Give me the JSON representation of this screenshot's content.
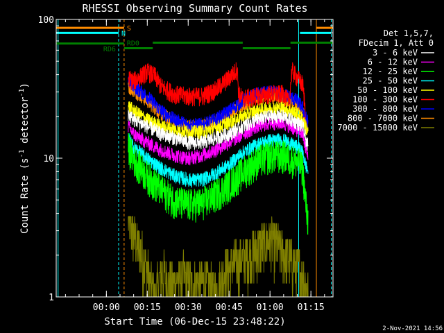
{
  "chart_data": {
    "type": "line",
    "title": "RHESSI Observing Summary Count Rates",
    "xlabel": "Start Time (06-Dec-15 23:48:22)",
    "ylabel_main": "Count Rate (s",
    "ylabel_sup": "-1",
    "ylabel_tail": " detector",
    "ylabel_end": ")",
    "yscale": "log",
    "ylim": [
      1,
      100
    ],
    "xlim_minutes": [
      -18.4,
      83.1
    ],
    "y_ticks": [
      {
        "v": 1,
        "label": "1"
      },
      {
        "v": 10,
        "label": "10"
      },
      {
        "v": 100,
        "label": "100"
      }
    ],
    "x_ticks": [
      {
        "v": 0,
        "label": "00:00"
      },
      {
        "v": 15,
        "label": "00:15"
      },
      {
        "v": 30,
        "label": "00:30"
      },
      {
        "v": 45,
        "label": "00:45"
      },
      {
        "v": 60,
        "label": "01:00"
      },
      {
        "v": 75,
        "label": "01:15"
      }
    ],
    "legend_header": [
      "Det 1,5,7,",
      "FDecim 1, Att 0"
    ],
    "series": [
      {
        "name": "3 - 6 keV",
        "color": "#ffffff",
        "points": [
          [
            8,
            21
          ],
          [
            10,
            19
          ],
          [
            15,
            17
          ],
          [
            20,
            15
          ],
          [
            25,
            14
          ],
          [
            30,
            13
          ],
          [
            35,
            13
          ],
          [
            40,
            14
          ],
          [
            45,
            15
          ],
          [
            50,
            17
          ],
          [
            55,
            19
          ],
          [
            60,
            20
          ],
          [
            65,
            20
          ],
          [
            70,
            18
          ],
          [
            72,
            17
          ],
          [
            73,
            14
          ],
          [
            74,
            12
          ]
        ]
      },
      {
        "name": "6 - 12 keV",
        "color": "#ff00ff",
        "points": [
          [
            8,
            17
          ],
          [
            10,
            15
          ],
          [
            15,
            13
          ],
          [
            20,
            11.5
          ],
          [
            25,
            10.5
          ],
          [
            30,
            10
          ],
          [
            35,
            10.5
          ],
          [
            40,
            11.5
          ],
          [
            45,
            13
          ],
          [
            50,
            15
          ],
          [
            55,
            17
          ],
          [
            60,
            18
          ],
          [
            65,
            18
          ],
          [
            70,
            16
          ],
          [
            72,
            15
          ],
          [
            73,
            12
          ],
          [
            74,
            10
          ]
        ]
      },
      {
        "name": "12 - 25 keV",
        "color": "#00ff00",
        "points": [
          [
            8,
            12
          ],
          [
            10,
            10
          ],
          [
            15,
            7.5
          ],
          [
            20,
            6
          ],
          [
            25,
            5
          ],
          [
            30,
            4.7
          ],
          [
            35,
            4.8
          ],
          [
            40,
            5.5
          ],
          [
            45,
            6.5
          ],
          [
            50,
            8
          ],
          [
            55,
            9.5
          ],
          [
            60,
            10.5
          ],
          [
            65,
            10.5
          ],
          [
            70,
            9.5
          ],
          [
            72,
            8.5
          ],
          [
            73,
            5
          ],
          [
            74,
            3.5
          ]
        ]
      },
      {
        "name": "25 - 50 keV",
        "color": "#00ffff",
        "points": [
          [
            8,
            14
          ],
          [
            10,
            12
          ],
          [
            15,
            10
          ],
          [
            20,
            8.5
          ],
          [
            25,
            7.5
          ],
          [
            30,
            7
          ],
          [
            35,
            7
          ],
          [
            40,
            7.8
          ],
          [
            45,
            9
          ],
          [
            50,
            11
          ],
          [
            55,
            12.5
          ],
          [
            60,
            13.5
          ],
          [
            65,
            13.5
          ],
          [
            70,
            12
          ],
          [
            72,
            11
          ],
          [
            73,
            9
          ],
          [
            74,
            8
          ]
        ]
      },
      {
        "name": "50 - 100 keV",
        "color": "#ffff00",
        "points": [
          [
            8,
            24
          ],
          [
            10,
            22
          ],
          [
            15,
            19
          ],
          [
            20,
            17
          ],
          [
            25,
            16
          ],
          [
            30,
            15.5
          ],
          [
            35,
            15.5
          ],
          [
            40,
            16.5
          ],
          [
            45,
            18
          ],
          [
            50,
            20
          ],
          [
            55,
            22
          ],
          [
            60,
            23
          ],
          [
            65,
            23
          ],
          [
            70,
            21
          ],
          [
            72,
            19
          ],
          [
            73,
            17
          ],
          [
            74,
            15
          ]
        ]
      },
      {
        "name": "100 - 300 keV",
        "color": "#ff0000",
        "points": [
          [
            8,
            38
          ],
          [
            10,
            36
          ],
          [
            15,
            42
          ],
          [
            18,
            39
          ],
          [
            20,
            33
          ],
          [
            25,
            29
          ],
          [
            30,
            28
          ],
          [
            35,
            28
          ],
          [
            40,
            31
          ],
          [
            45,
            38
          ],
          [
            48,
            44
          ],
          [
            48.5,
            29
          ],
          [
            50,
            27
          ],
          [
            55,
            28
          ],
          [
            60,
            29
          ],
          [
            65,
            29
          ],
          [
            67,
            25
          ],
          [
            68,
            43
          ],
          [
            70,
            38
          ],
          [
            72,
            34
          ],
          [
            73,
            22
          ]
        ]
      },
      {
        "name": "300 - 800 keV",
        "color": "#0000ff",
        "points": [
          [
            8,
            36
          ],
          [
            10,
            33
          ],
          [
            15,
            28
          ],
          [
            20,
            22
          ],
          [
            25,
            19
          ],
          [
            30,
            17.5
          ],
          [
            35,
            17.5
          ],
          [
            40,
            19
          ],
          [
            45,
            22
          ],
          [
            50,
            26
          ],
          [
            55,
            29
          ],
          [
            60,
            30
          ],
          [
            65,
            29
          ],
          [
            70,
            26
          ],
          [
            72,
            23
          ],
          [
            73,
            20
          ],
          [
            74,
            18
          ]
        ]
      },
      {
        "name": "800 - 7000 keV",
        "color": "#ff8c00",
        "points": [
          [
            8,
            33
          ],
          [
            10,
            31
          ],
          [
            15,
            26
          ],
          [
            20,
            21
          ],
          [
            25,
            18.5
          ],
          [
            30,
            17
          ],
          [
            35,
            17
          ],
          [
            40,
            18.5
          ],
          [
            45,
            21
          ],
          [
            50,
            24
          ],
          [
            55,
            27
          ],
          [
            60,
            28
          ],
          [
            65,
            27.5
          ],
          [
            70,
            24
          ],
          [
            72,
            22
          ],
          [
            73,
            19
          ],
          [
            74,
            17
          ]
        ]
      },
      {
        "name": "7000 - 15000 keV",
        "color": "#7f7f00",
        "points": [
          [
            8,
            3.8
          ],
          [
            9,
            3.2
          ],
          [
            10,
            2.8
          ],
          [
            12,
            2.3
          ],
          [
            14,
            1.8
          ],
          [
            16,
            1.3
          ],
          [
            18,
            1
          ],
          [
            20,
            1.5
          ],
          [
            24,
            1.2
          ],
          [
            28,
            1.4
          ],
          [
            32,
            1.2
          ],
          [
            36,
            1.3
          ],
          [
            40,
            1.1
          ],
          [
            44,
            1.6
          ],
          [
            48,
            1.8
          ],
          [
            52,
            2
          ],
          [
            56,
            2.3
          ],
          [
            60,
            2.6
          ],
          [
            64,
            2.2
          ],
          [
            68,
            1.8
          ],
          [
            72,
            1.5
          ],
          [
            74,
            1.1
          ]
        ]
      }
    ],
    "attenuator_flags": [
      {
        "label": "S",
        "color": "#ff8c00",
        "value": 87,
        "segments": [
          [
            -18.4,
            6.5
          ],
          [
            77,
            83.1
          ]
        ]
      },
      {
        "label": "N",
        "color": "#00ffff",
        "value": 80,
        "segments": [
          [
            -18.4,
            4.5
          ],
          [
            71,
            82.5
          ]
        ]
      }
    ],
    "decimation_flags": {
      "color": "#008000",
      "segments": [
        {
          "x": [
            -18.4,
            6.5
          ],
          "v": 67,
          "label": "RD6"
        },
        {
          "x": [
            6.5,
            17
          ],
          "v": 62,
          "label": "RD0"
        },
        {
          "x": [
            17,
            50
          ],
          "v": 68,
          "label": ""
        },
        {
          "x": [
            50,
            67.5
          ],
          "v": 62,
          "label": ""
        },
        {
          "x": [
            67.5,
            83.1
          ],
          "v": 68,
          "label": ""
        }
      ]
    },
    "vertical_markers": [
      {
        "x": -17.7,
        "color": "#00ffff",
        "style": "solid"
      },
      {
        "x": 4.5,
        "color": "#00ffff",
        "style": "dashed"
      },
      {
        "x": 6.5,
        "color": "#ff8c00",
        "style": "dashed"
      },
      {
        "x": 70.5,
        "color": "#00ffff",
        "style": "solid"
      },
      {
        "x": 77,
        "color": "#ff8c00",
        "style": "solid"
      },
      {
        "x": 82.5,
        "color": "#00ffff",
        "style": "dashed"
      }
    ],
    "timestamp": "2-Nov-2021 14:56"
  }
}
